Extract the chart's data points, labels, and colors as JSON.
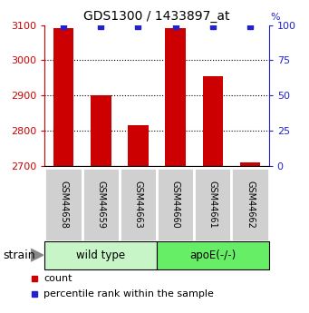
{
  "title": "GDS1300 / 1433897_at",
  "samples": [
    "GSM44658",
    "GSM44659",
    "GSM44663",
    "GSM44660",
    "GSM44661",
    "GSM44662"
  ],
  "counts": [
    3090,
    2900,
    2815,
    3090,
    2955,
    2710
  ],
  "percentile_ranks": [
    99,
    99,
    99,
    99,
    99,
    99
  ],
  "groups": [
    "wild type",
    "wild type",
    "wild type",
    "apoE(-/-)",
    "apoE(-/-)",
    "apoE(-/-)"
  ],
  "wild_type_color": "#c8f5c8",
  "apoe_color": "#66ee66",
  "bar_color": "#cc0000",
  "dot_color": "#2222cc",
  "ylim_left": [
    2700,
    3100
  ],
  "ylim_right": [
    0,
    100
  ],
  "yticks_left": [
    2700,
    2800,
    2900,
    3000,
    3100
  ],
  "yticks_right": [
    0,
    25,
    50,
    75,
    100
  ],
  "left_tick_color": "#cc0000",
  "right_tick_color": "#2222cc",
  "background_color": "#ffffff",
  "sample_box_color": "#d0d0d0",
  "bar_width": 0.55,
  "base_value": 2700,
  "legend_items": [
    "count",
    "percentile rank within the sample"
  ]
}
